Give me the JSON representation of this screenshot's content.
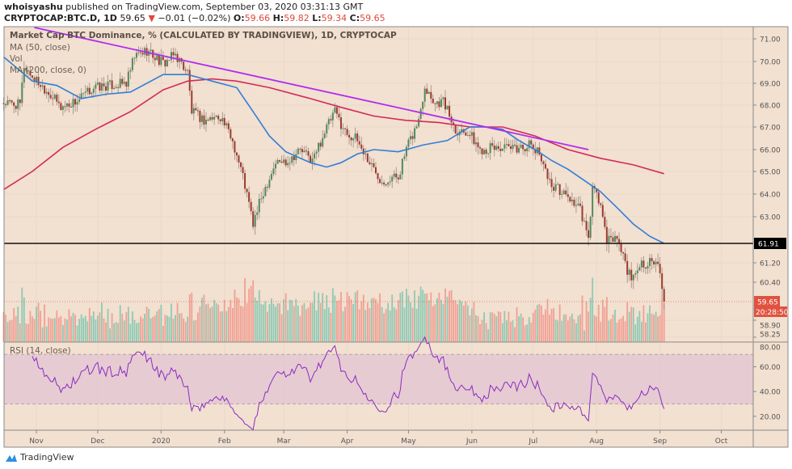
{
  "header": {
    "author": "whoisyashu",
    "published": "published on TradingView.com, September 03, 2020 03:31:13 GMT",
    "symbol": "CRYPTOCAP:BTC.D, 1D",
    "last": "59.65",
    "change": "−0.01 (−0.02%)",
    "o_label": "O:",
    "o": "59.66",
    "h_label": "H:",
    "h": "59.82",
    "l_label": "L:",
    "l": "59.34",
    "c_label": "C:",
    "c": "59.65"
  },
  "legend": {
    "title": "Market Cap BTC Dominance, % (CALCULATED BY TRADINGVIEW), 1D, CRYPTOCAP",
    "ma50": "MA (50, close)",
    "vol": "Vol",
    "ma200": "MA (200, close, 0)",
    "rsi": "RSI (14, close)"
  },
  "footer": {
    "brand": "TradingView"
  },
  "colors": {
    "background": "#f2e0d0",
    "up": "#4f8a5f",
    "down": "#9c3a2e",
    "vol_up": "#8ecab4",
    "vol_down": "#f0a094",
    "ma50": "#2f7fd8",
    "ma200": "#d42a5a",
    "trendline": "#b02cf0",
    "support": "#111111",
    "rsi_line": "#8a2cc0",
    "rsi_band": "#e2c6d2",
    "last_price": "#e0523f"
  },
  "chart_data": {
    "type": "candlestick",
    "title": "Market Cap BTC Dominance, % (CALCULATED BY TRADINGVIEW), 1D, CRYPTOCAP",
    "x_ticks": [
      "Nov",
      "Dec",
      "2020",
      "Feb",
      "Mar",
      "Apr",
      "May",
      "Jun",
      "Jul",
      "Aug",
      "Sep",
      "Oct"
    ],
    "price_ticks": [
      "71.00",
      "70.00",
      "69.00",
      "68.00",
      "67.00",
      "66.00",
      "65.00",
      "64.00",
      "63.00",
      "61.20",
      "60.40",
      "58.90",
      "58.25"
    ],
    "rsi_ticks": [
      "80.00",
      "60.00",
      "40.00",
      "20.00"
    ],
    "rsi_band": [
      30,
      70
    ],
    "support_level": 61.91,
    "support_label": "61.91",
    "last_price_label": "59.65",
    "countdown_label": "20:28:50",
    "close_path": [
      [
        "2019-10-16",
        68.1
      ],
      [
        "2019-10-24",
        68.0
      ],
      [
        "2019-10-26",
        69.8
      ],
      [
        "2019-10-30",
        69.3
      ],
      [
        "2019-11-07",
        68.6
      ],
      [
        "2019-11-13",
        67.9
      ],
      [
        "2019-11-21",
        68.2
      ],
      [
        "2019-11-29",
        68.8
      ],
      [
        "2019-12-07",
        68.9
      ],
      [
        "2019-12-15",
        69.0
      ],
      [
        "2019-12-19",
        70.2
      ],
      [
        "2019-12-25",
        70.5
      ],
      [
        "2020-01-02",
        69.9
      ],
      [
        "2020-01-08",
        70.3
      ],
      [
        "2020-01-14",
        69.5
      ],
      [
        "2020-01-16",
        67.7
      ],
      [
        "2020-01-22",
        67.3
      ],
      [
        "2020-01-30",
        67.5
      ],
      [
        "2020-02-05",
        66.4
      ],
      [
        "2020-02-10",
        64.8
      ],
      [
        "2020-02-15",
        62.7
      ],
      [
        "2020-02-20",
        64.1
      ],
      [
        "2020-02-26",
        65.4
      ],
      [
        "2020-03-03",
        65.5
      ],
      [
        "2020-03-09",
        66.0
      ],
      [
        "2020-03-15",
        65.5
      ],
      [
        "2020-03-21",
        66.8
      ],
      [
        "2020-03-26",
        67.7
      ],
      [
        "2020-03-31",
        66.8
      ],
      [
        "2020-04-06",
        66.4
      ],
      [
        "2020-04-12",
        65.4
      ],
      [
        "2020-04-18",
        64.6
      ],
      [
        "2020-04-26",
        64.8
      ],
      [
        "2020-04-30",
        66.0
      ],
      [
        "2020-05-06",
        67.3
      ],
      [
        "2020-05-09",
        68.9
      ],
      [
        "2020-05-14",
        68.1
      ],
      [
        "2020-05-18",
        68.2
      ],
      [
        "2020-05-24",
        66.9
      ],
      [
        "2020-05-30",
        66.8
      ],
      [
        "2020-06-05",
        66.0
      ],
      [
        "2020-06-13",
        66.1
      ],
      [
        "2020-06-21",
        66.0
      ],
      [
        "2020-06-29",
        66.2
      ],
      [
        "2020-07-05",
        65.7
      ],
      [
        "2020-07-09",
        64.5
      ],
      [
        "2020-07-15",
        64.1
      ],
      [
        "2020-07-19",
        63.8
      ],
      [
        "2020-07-24",
        63.3
      ],
      [
        "2020-07-28",
        62.0
      ],
      [
        "2020-07-30",
        64.3
      ],
      [
        "2020-08-03",
        63.5
      ],
      [
        "2020-08-06",
        61.9
      ],
      [
        "2020-08-10",
        62.2
      ],
      [
        "2020-08-14",
        61.5
      ],
      [
        "2020-08-18",
        60.4
      ],
      [
        "2020-08-22",
        61.2
      ],
      [
        "2020-08-28",
        61.2
      ],
      [
        "2020-09-01",
        60.9
      ],
      [
        "2020-09-02",
        60.0
      ],
      [
        "2020-09-03",
        59.65
      ]
    ],
    "ma50": [
      [
        "2019-10-16",
        70.2
      ],
      [
        "2019-10-30",
        69.1
      ],
      [
        "2019-11-11",
        68.9
      ],
      [
        "2019-11-23",
        68.3
      ],
      [
        "2019-12-05",
        68.5
      ],
      [
        "2019-12-17",
        68.6
      ],
      [
        "2020-01-02",
        69.4
      ],
      [
        "2020-01-14",
        69.4
      ],
      [
        "2020-01-26",
        69.1
      ],
      [
        "2020-02-07",
        68.8
      ],
      [
        "2020-02-15",
        67.7
      ],
      [
        "2020-02-23",
        66.6
      ],
      [
        "2020-03-02",
        65.9
      ],
      [
        "2020-03-14",
        65.4
      ],
      [
        "2020-03-22",
        65.2
      ],
      [
        "2020-03-29",
        65.4
      ],
      [
        "2020-04-06",
        65.8
      ],
      [
        "2020-04-14",
        66.0
      ],
      [
        "2020-04-26",
        65.9
      ],
      [
        "2020-05-08",
        66.2
      ],
      [
        "2020-05-20",
        66.4
      ],
      [
        "2020-05-31",
        67.0
      ],
      [
        "2020-06-08",
        67.0
      ],
      [
        "2020-06-16",
        66.9
      ],
      [
        "2020-06-24",
        66.4
      ],
      [
        "2020-07-02",
        66.0
      ],
      [
        "2020-07-10",
        65.5
      ],
      [
        "2020-07-18",
        65.1
      ],
      [
        "2020-07-26",
        64.6
      ],
      [
        "2020-08-03",
        64.1
      ],
      [
        "2020-08-11",
        63.4
      ],
      [
        "2020-08-19",
        62.7
      ],
      [
        "2020-08-27",
        62.2
      ],
      [
        "2020-09-03",
        61.91
      ]
    ],
    "ma200": [
      [
        "2019-10-16",
        64.2
      ],
      [
        "2019-10-30",
        65.0
      ],
      [
        "2019-11-14",
        66.1
      ],
      [
        "2019-11-30",
        66.9
      ],
      [
        "2019-12-17",
        67.7
      ],
      [
        "2020-01-02",
        68.7
      ],
      [
        "2020-01-14",
        69.1
      ],
      [
        "2020-01-26",
        69.2
      ],
      [
        "2020-02-07",
        69.1
      ],
      [
        "2020-02-23",
        68.8
      ],
      [
        "2020-03-14",
        68.3
      ],
      [
        "2020-03-29",
        67.9
      ],
      [
        "2020-04-14",
        67.5
      ],
      [
        "2020-04-30",
        67.3
      ],
      [
        "2020-05-16",
        67.2
      ],
      [
        "2020-05-31",
        67.0
      ],
      [
        "2020-06-16",
        67.0
      ],
      [
        "2020-07-02",
        66.6
      ],
      [
        "2020-07-18",
        66.0
      ],
      [
        "2020-08-03",
        65.6
      ],
      [
        "2020-08-19",
        65.3
      ],
      [
        "2020-09-03",
        64.9
      ]
    ],
    "trendline": [
      [
        "2019-10-31",
        71.5
      ],
      [
        "2020-07-28",
        66.0
      ]
    ]
  }
}
